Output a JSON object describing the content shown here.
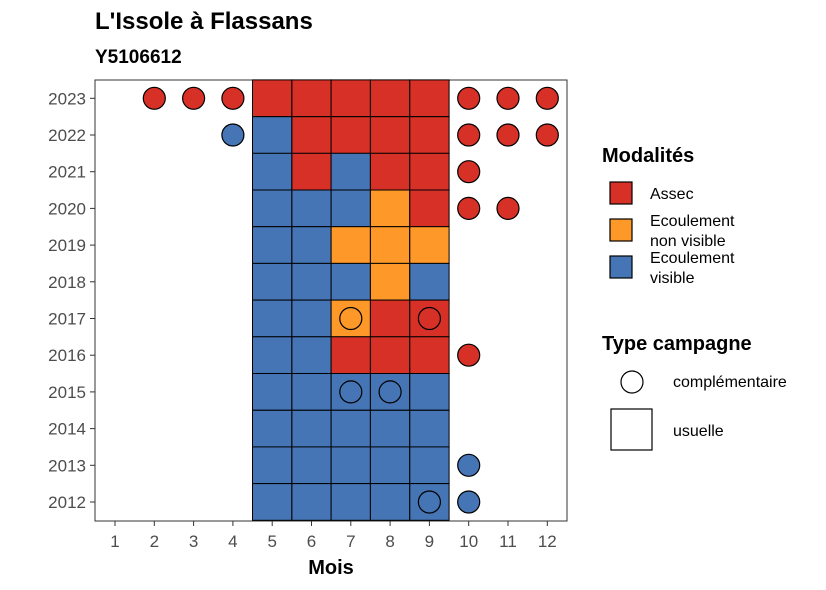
{
  "chart_data": {
    "type": "heatmap",
    "title": "L'Issole à Flassans",
    "subtitle": "Y5106612",
    "xlabel": "Mois",
    "ylabel": "",
    "x_ticks": [
      "1",
      "2",
      "3",
      "4",
      "5",
      "6",
      "7",
      "8",
      "9",
      "10",
      "11",
      "12"
    ],
    "y_ticks": [
      "2012",
      "2013",
      "2014",
      "2015",
      "2016",
      "2017",
      "2018",
      "2019",
      "2020",
      "2021",
      "2022",
      "2023"
    ],
    "colors": {
      "Assec": "#d73027",
      "Ecoulement non visible": "#fe9929",
      "Ecoulement visible": "#4575b4"
    },
    "legend_modalites": {
      "title": "Modalités",
      "items": [
        {
          "key": "Assec",
          "label_lines": [
            "Assec"
          ]
        },
        {
          "key": "Ecoulement non visible",
          "label_lines": [
            "Ecoulement",
            "non visible"
          ]
        },
        {
          "key": "Ecoulement visible",
          "label_lines": [
            "Ecoulement",
            "visible"
          ]
        }
      ]
    },
    "legend_campagne": {
      "title": "Type campagne",
      "items": [
        {
          "shape": "circle",
          "label": "complémentaire"
        },
        {
          "shape": "square",
          "label": "usuelle"
        }
      ]
    },
    "observations": [
      {
        "year": 2023,
        "month": 2,
        "modalite": "Assec",
        "campagne": "complémentaire"
      },
      {
        "year": 2023,
        "month": 3,
        "modalite": "Assec",
        "campagne": "complémentaire"
      },
      {
        "year": 2023,
        "month": 4,
        "modalite": "Assec",
        "campagne": "complémentaire"
      },
      {
        "year": 2023,
        "month": 5,
        "modalite": "Assec",
        "campagne": "usuelle"
      },
      {
        "year": 2023,
        "month": 6,
        "modalite": "Assec",
        "campagne": "usuelle"
      },
      {
        "year": 2023,
        "month": 7,
        "modalite": "Assec",
        "campagne": "usuelle"
      },
      {
        "year": 2023,
        "month": 8,
        "modalite": "Assec",
        "campagne": "usuelle"
      },
      {
        "year": 2023,
        "month": 9,
        "modalite": "Assec",
        "campagne": "usuelle"
      },
      {
        "year": 2023,
        "month": 10,
        "modalite": "Assec",
        "campagne": "complémentaire"
      },
      {
        "year": 2023,
        "month": 11,
        "modalite": "Assec",
        "campagne": "complémentaire"
      },
      {
        "year": 2023,
        "month": 12,
        "modalite": "Assec",
        "campagne": "complémentaire"
      },
      {
        "year": 2022,
        "month": 4,
        "modalite": "Ecoulement visible",
        "campagne": "complémentaire"
      },
      {
        "year": 2022,
        "month": 5,
        "modalite": "Ecoulement visible",
        "campagne": "usuelle"
      },
      {
        "year": 2022,
        "month": 6,
        "modalite": "Assec",
        "campagne": "usuelle"
      },
      {
        "year": 2022,
        "month": 7,
        "modalite": "Assec",
        "campagne": "usuelle"
      },
      {
        "year": 2022,
        "month": 8,
        "modalite": "Assec",
        "campagne": "usuelle"
      },
      {
        "year": 2022,
        "month": 9,
        "modalite": "Assec",
        "campagne": "usuelle"
      },
      {
        "year": 2022,
        "month": 10,
        "modalite": "Assec",
        "campagne": "complémentaire"
      },
      {
        "year": 2022,
        "month": 11,
        "modalite": "Assec",
        "campagne": "complémentaire"
      },
      {
        "year": 2022,
        "month": 12,
        "modalite": "Assec",
        "campagne": "complémentaire"
      },
      {
        "year": 2021,
        "month": 5,
        "modalite": "Ecoulement visible",
        "campagne": "usuelle"
      },
      {
        "year": 2021,
        "month": 6,
        "modalite": "Assec",
        "campagne": "usuelle"
      },
      {
        "year": 2021,
        "month": 7,
        "modalite": "Ecoulement visible",
        "campagne": "usuelle"
      },
      {
        "year": 2021,
        "month": 8,
        "modalite": "Assec",
        "campagne": "usuelle"
      },
      {
        "year": 2021,
        "month": 9,
        "modalite": "Assec",
        "campagne": "usuelle"
      },
      {
        "year": 2021,
        "month": 10,
        "modalite": "Assec",
        "campagne": "complémentaire"
      },
      {
        "year": 2020,
        "month": 5,
        "modalite": "Ecoulement visible",
        "campagne": "usuelle"
      },
      {
        "year": 2020,
        "month": 6,
        "modalite": "Ecoulement visible",
        "campagne": "usuelle"
      },
      {
        "year": 2020,
        "month": 7,
        "modalite": "Ecoulement visible",
        "campagne": "usuelle"
      },
      {
        "year": 2020,
        "month": 8,
        "modalite": "Ecoulement non visible",
        "campagne": "usuelle"
      },
      {
        "year": 2020,
        "month": 9,
        "modalite": "Assec",
        "campagne": "usuelle"
      },
      {
        "year": 2020,
        "month": 10,
        "modalite": "Assec",
        "campagne": "complémentaire"
      },
      {
        "year": 2020,
        "month": 11,
        "modalite": "Assec",
        "campagne": "complémentaire"
      },
      {
        "year": 2019,
        "month": 5,
        "modalite": "Ecoulement visible",
        "campagne": "usuelle"
      },
      {
        "year": 2019,
        "month": 6,
        "modalite": "Ecoulement visible",
        "campagne": "usuelle"
      },
      {
        "year": 2019,
        "month": 7,
        "modalite": "Ecoulement non visible",
        "campagne": "usuelle"
      },
      {
        "year": 2019,
        "month": 8,
        "modalite": "Ecoulement non visible",
        "campagne": "usuelle"
      },
      {
        "year": 2019,
        "month": 9,
        "modalite": "Ecoulement non visible",
        "campagne": "usuelle"
      },
      {
        "year": 2018,
        "month": 5,
        "modalite": "Ecoulement visible",
        "campagne": "usuelle"
      },
      {
        "year": 2018,
        "month": 6,
        "modalite": "Ecoulement visible",
        "campagne": "usuelle"
      },
      {
        "year": 2018,
        "month": 7,
        "modalite": "Ecoulement visible",
        "campagne": "usuelle"
      },
      {
        "year": 2018,
        "month": 8,
        "modalite": "Ecoulement non visible",
        "campagne": "usuelle"
      },
      {
        "year": 2018,
        "month": 9,
        "modalite": "Ecoulement visible",
        "campagne": "usuelle"
      },
      {
        "year": 2017,
        "month": 5,
        "modalite": "Ecoulement visible",
        "campagne": "usuelle"
      },
      {
        "year": 2017,
        "month": 6,
        "modalite": "Ecoulement visible",
        "campagne": "usuelle"
      },
      {
        "year": 2017,
        "month": 7,
        "modalite": "Ecoulement non visible",
        "campagne": "usuelle"
      },
      {
        "year": 2017,
        "month": 7,
        "modalite": "Ecoulement non visible",
        "campagne": "complémentaire"
      },
      {
        "year": 2017,
        "month": 8,
        "modalite": "Assec",
        "campagne": "usuelle"
      },
      {
        "year": 2017,
        "month": 9,
        "modalite": "Assec",
        "campagne": "usuelle"
      },
      {
        "year": 2017,
        "month": 9,
        "modalite": "Assec",
        "campagne": "complémentaire"
      },
      {
        "year": 2016,
        "month": 5,
        "modalite": "Ecoulement visible",
        "campagne": "usuelle"
      },
      {
        "year": 2016,
        "month": 6,
        "modalite": "Ecoulement visible",
        "campagne": "usuelle"
      },
      {
        "year": 2016,
        "month": 7,
        "modalite": "Assec",
        "campagne": "usuelle"
      },
      {
        "year": 2016,
        "month": 8,
        "modalite": "Assec",
        "campagne": "usuelle"
      },
      {
        "year": 2016,
        "month": 9,
        "modalite": "Assec",
        "campagne": "usuelle"
      },
      {
        "year": 2016,
        "month": 10,
        "modalite": "Assec",
        "campagne": "complémentaire"
      },
      {
        "year": 2015,
        "month": 5,
        "modalite": "Ecoulement visible",
        "campagne": "usuelle"
      },
      {
        "year": 2015,
        "month": 6,
        "modalite": "Ecoulement visible",
        "campagne": "usuelle"
      },
      {
        "year": 2015,
        "month": 7,
        "modalite": "Ecoulement visible",
        "campagne": "usuelle"
      },
      {
        "year": 2015,
        "month": 7,
        "modalite": "Ecoulement visible",
        "campagne": "complémentaire"
      },
      {
        "year": 2015,
        "month": 8,
        "modalite": "Ecoulement visible",
        "campagne": "usuelle"
      },
      {
        "year": 2015,
        "month": 8,
        "modalite": "Ecoulement visible",
        "campagne": "complémentaire"
      },
      {
        "year": 2015,
        "month": 9,
        "modalite": "Ecoulement visible",
        "campagne": "usuelle"
      },
      {
        "year": 2014,
        "month": 5,
        "modalite": "Ecoulement visible",
        "campagne": "usuelle"
      },
      {
        "year": 2014,
        "month": 6,
        "modalite": "Ecoulement visible",
        "campagne": "usuelle"
      },
      {
        "year": 2014,
        "month": 7,
        "modalite": "Ecoulement visible",
        "campagne": "usuelle"
      },
      {
        "year": 2014,
        "month": 8,
        "modalite": "Ecoulement visible",
        "campagne": "usuelle"
      },
      {
        "year": 2014,
        "month": 9,
        "modalite": "Ecoulement visible",
        "campagne": "usuelle"
      },
      {
        "year": 2013,
        "month": 5,
        "modalite": "Ecoulement visible",
        "campagne": "usuelle"
      },
      {
        "year": 2013,
        "month": 6,
        "modalite": "Ecoulement visible",
        "campagne": "usuelle"
      },
      {
        "year": 2013,
        "month": 7,
        "modalite": "Ecoulement visible",
        "campagne": "usuelle"
      },
      {
        "year": 2013,
        "month": 8,
        "modalite": "Ecoulement visible",
        "campagne": "usuelle"
      },
      {
        "year": 2013,
        "month": 9,
        "modalite": "Ecoulement visible",
        "campagne": "usuelle"
      },
      {
        "year": 2013,
        "month": 10,
        "modalite": "Ecoulement visible",
        "campagne": "complémentaire"
      },
      {
        "year": 2012,
        "month": 5,
        "modalite": "Ecoulement visible",
        "campagne": "usuelle"
      },
      {
        "year": 2012,
        "month": 6,
        "modalite": "Ecoulement visible",
        "campagne": "usuelle"
      },
      {
        "year": 2012,
        "month": 7,
        "modalite": "Ecoulement visible",
        "campagne": "usuelle"
      },
      {
        "year": 2012,
        "month": 8,
        "modalite": "Ecoulement visible",
        "campagne": "usuelle"
      },
      {
        "year": 2012,
        "month": 9,
        "modalite": "Ecoulement visible",
        "campagne": "usuelle"
      },
      {
        "year": 2012,
        "month": 9,
        "modalite": "Ecoulement visible",
        "campagne": "complémentaire"
      },
      {
        "year": 2012,
        "month": 10,
        "modalite": "Ecoulement visible",
        "campagne": "complémentaire"
      }
    ]
  }
}
